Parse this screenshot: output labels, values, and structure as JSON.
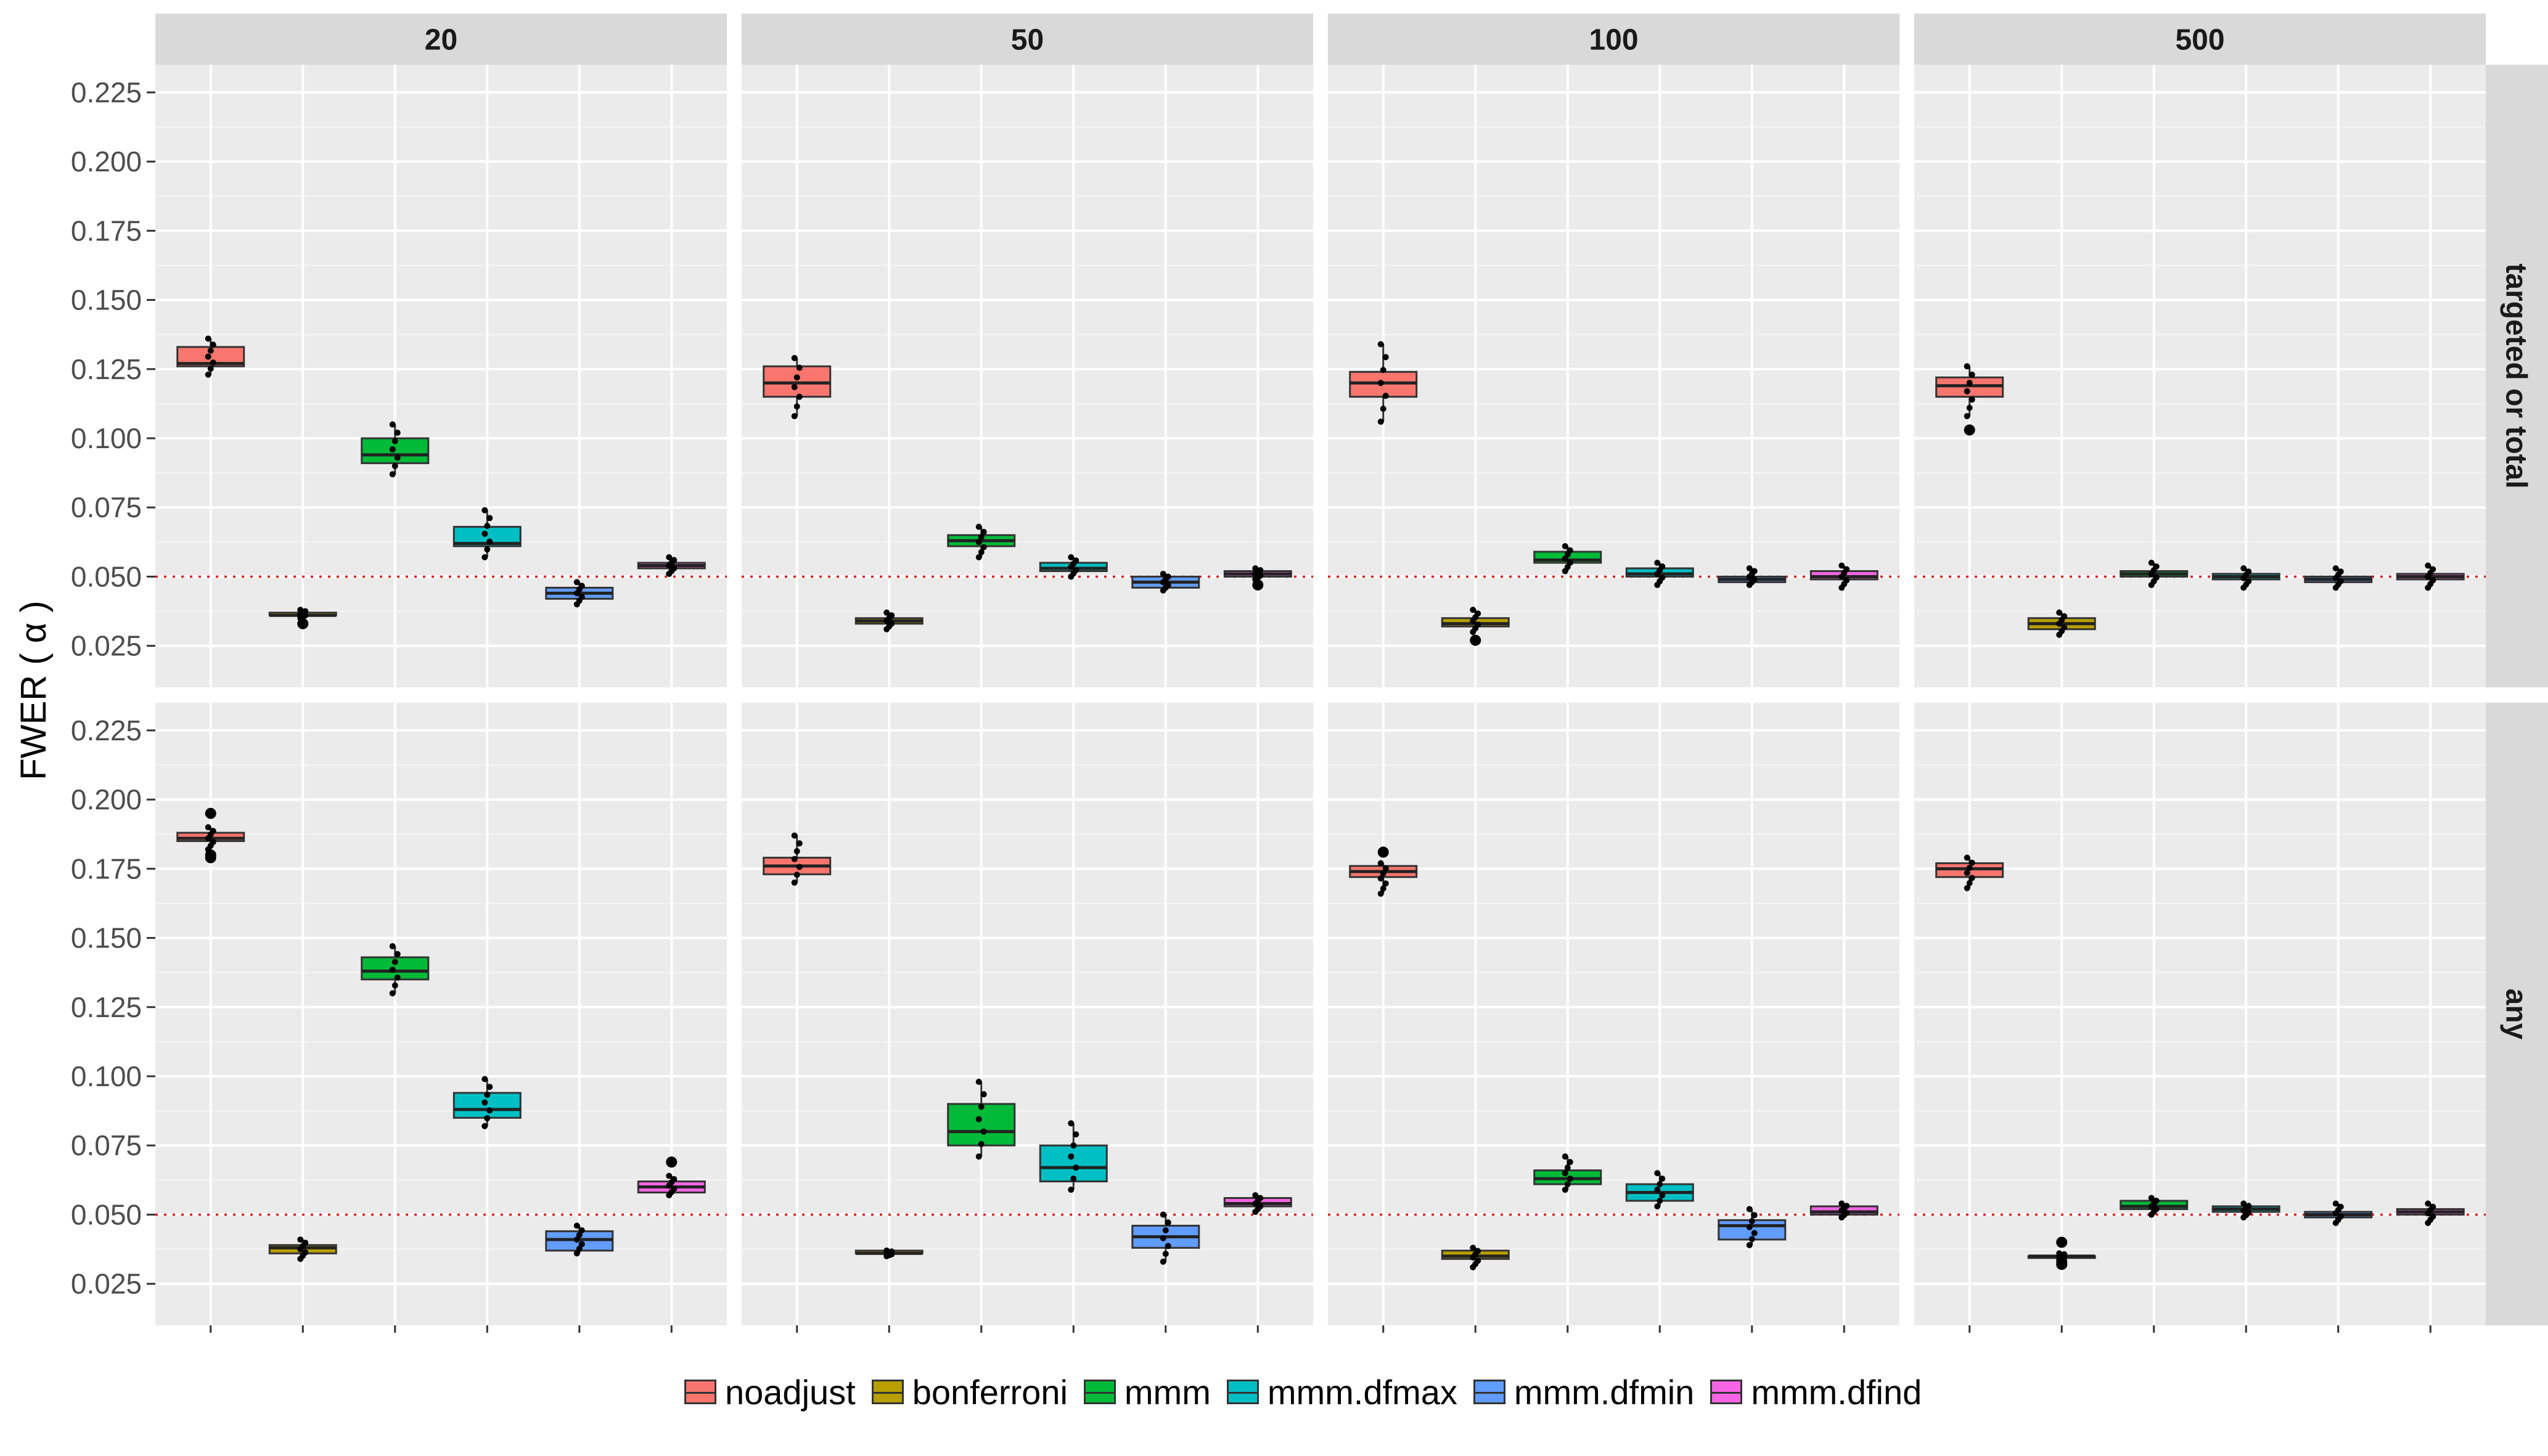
{
  "chart_data": {
    "type": "box",
    "ylabel": "FWER ( α )",
    "ylim": [
      0.01,
      0.235
    ],
    "y_ticks": [
      0.025,
      0.05,
      0.075,
      0.1,
      0.125,
      0.15,
      0.175,
      0.2,
      0.225
    ],
    "y_tick_labels": [
      "0.025",
      "0.050",
      "0.075",
      "0.100",
      "0.125",
      "0.150",
      "0.175",
      "0.200",
      "0.225"
    ],
    "reference_line": 0.05,
    "facet_columns": [
      "20",
      "50",
      "100",
      "500"
    ],
    "facet_rows": [
      "targeted or total",
      "any"
    ],
    "methods": [
      "noadjust",
      "bonferroni",
      "mmm",
      "mmm.dfmax",
      "mmm.dfmin",
      "mmm.dfind"
    ],
    "colors": {
      "noadjust": "#F8766D",
      "bonferroni": "#B79F00",
      "mmm": "#00BA38",
      "mmm.dfmax": "#00BFC4",
      "mmm.dfmin": "#619CFF",
      "mmm.dfind": "#F564E3",
      "reference_line": "#e41a1c",
      "panel": "#ebebeb",
      "strip": "#d9d9d9"
    },
    "panels": [
      {
        "row": 0,
        "col": 0,
        "boxes": [
          {
            "q1": 0.126,
            "med": 0.127,
            "q3": 0.133,
            "lo": 0.123,
            "hi": 0.136,
            "out": []
          },
          {
            "q1": 0.036,
            "med": 0.036,
            "q3": 0.037,
            "lo": 0.035,
            "hi": 0.038,
            "out": [
              0.033
            ]
          },
          {
            "q1": 0.091,
            "med": 0.094,
            "q3": 0.1,
            "lo": 0.087,
            "hi": 0.105,
            "out": []
          },
          {
            "q1": 0.061,
            "med": 0.062,
            "q3": 0.068,
            "lo": 0.057,
            "hi": 0.074,
            "out": []
          },
          {
            "q1": 0.042,
            "med": 0.044,
            "q3": 0.046,
            "lo": 0.04,
            "hi": 0.048,
            "out": []
          },
          {
            "q1": 0.053,
            "med": 0.054,
            "q3": 0.055,
            "lo": 0.051,
            "hi": 0.057,
            "out": []
          }
        ]
      },
      {
        "row": 0,
        "col": 1,
        "boxes": [
          {
            "q1": 0.115,
            "med": 0.12,
            "q3": 0.126,
            "lo": 0.108,
            "hi": 0.129,
            "out": []
          },
          {
            "q1": 0.033,
            "med": 0.034,
            "q3": 0.035,
            "lo": 0.031,
            "hi": 0.037,
            "out": []
          },
          {
            "q1": 0.061,
            "med": 0.063,
            "q3": 0.065,
            "lo": 0.057,
            "hi": 0.068,
            "out": []
          },
          {
            "q1": 0.052,
            "med": 0.053,
            "q3": 0.055,
            "lo": 0.05,
            "hi": 0.057,
            "out": []
          },
          {
            "q1": 0.046,
            "med": 0.048,
            "q3": 0.05,
            "lo": 0.045,
            "hi": 0.051,
            "out": []
          },
          {
            "q1": 0.05,
            "med": 0.051,
            "q3": 0.052,
            "lo": 0.049,
            "hi": 0.053,
            "out": [
              0.047
            ]
          }
        ]
      },
      {
        "row": 0,
        "col": 2,
        "boxes": [
          {
            "q1": 0.115,
            "med": 0.12,
            "q3": 0.124,
            "lo": 0.106,
            "hi": 0.134,
            "out": []
          },
          {
            "q1": 0.032,
            "med": 0.033,
            "q3": 0.035,
            "lo": 0.03,
            "hi": 0.038,
            "out": [
              0.027
            ]
          },
          {
            "q1": 0.055,
            "med": 0.056,
            "q3": 0.059,
            "lo": 0.052,
            "hi": 0.061,
            "out": []
          },
          {
            "q1": 0.05,
            "med": 0.051,
            "q3": 0.053,
            "lo": 0.047,
            "hi": 0.055,
            "out": []
          },
          {
            "q1": 0.048,
            "med": 0.049,
            "q3": 0.05,
            "lo": 0.047,
            "hi": 0.053,
            "out": []
          },
          {
            "q1": 0.049,
            "med": 0.05,
            "q3": 0.052,
            "lo": 0.046,
            "hi": 0.054,
            "out": []
          }
        ]
      },
      {
        "row": 0,
        "col": 3,
        "boxes": [
          {
            "q1": 0.115,
            "med": 0.119,
            "q3": 0.122,
            "lo": 0.108,
            "hi": 0.126,
            "out": [
              0.103
            ]
          },
          {
            "q1": 0.031,
            "med": 0.033,
            "q3": 0.035,
            "lo": 0.029,
            "hi": 0.037,
            "out": []
          },
          {
            "q1": 0.05,
            "med": 0.051,
            "q3": 0.052,
            "lo": 0.047,
            "hi": 0.055,
            "out": []
          },
          {
            "q1": 0.049,
            "med": 0.05,
            "q3": 0.051,
            "lo": 0.046,
            "hi": 0.053,
            "out": []
          },
          {
            "q1": 0.048,
            "med": 0.049,
            "q3": 0.05,
            "lo": 0.046,
            "hi": 0.053,
            "out": []
          },
          {
            "q1": 0.049,
            "med": 0.05,
            "q3": 0.051,
            "lo": 0.046,
            "hi": 0.054,
            "out": []
          }
        ]
      },
      {
        "row": 1,
        "col": 0,
        "boxes": [
          {
            "q1": 0.185,
            "med": 0.186,
            "q3": 0.188,
            "lo": 0.182,
            "hi": 0.19,
            "out": [
              0.195,
              0.18,
              0.179
            ]
          },
          {
            "q1": 0.036,
            "med": 0.038,
            "q3": 0.039,
            "lo": 0.034,
            "hi": 0.041,
            "out": []
          },
          {
            "q1": 0.135,
            "med": 0.138,
            "q3": 0.143,
            "lo": 0.13,
            "hi": 0.147,
            "out": []
          },
          {
            "q1": 0.085,
            "med": 0.088,
            "q3": 0.094,
            "lo": 0.082,
            "hi": 0.099,
            "out": []
          },
          {
            "q1": 0.037,
            "med": 0.041,
            "q3": 0.044,
            "lo": 0.036,
            "hi": 0.046,
            "out": []
          },
          {
            "q1": 0.058,
            "med": 0.06,
            "q3": 0.062,
            "lo": 0.057,
            "hi": 0.064,
            "out": [
              0.069
            ]
          }
        ]
      },
      {
        "row": 1,
        "col": 1,
        "boxes": [
          {
            "q1": 0.173,
            "med": 0.176,
            "q3": 0.179,
            "lo": 0.17,
            "hi": 0.187,
            "out": []
          },
          {
            "q1": 0.036,
            "med": 0.036,
            "q3": 0.037,
            "lo": 0.035,
            "hi": 0.037,
            "out": []
          },
          {
            "q1": 0.075,
            "med": 0.08,
            "q3": 0.09,
            "lo": 0.071,
            "hi": 0.098,
            "out": []
          },
          {
            "q1": 0.062,
            "med": 0.067,
            "q3": 0.075,
            "lo": 0.059,
            "hi": 0.083,
            "out": []
          },
          {
            "q1": 0.038,
            "med": 0.042,
            "q3": 0.046,
            "lo": 0.033,
            "hi": 0.05,
            "out": []
          },
          {
            "q1": 0.053,
            "med": 0.054,
            "q3": 0.056,
            "lo": 0.051,
            "hi": 0.057,
            "out": []
          }
        ]
      },
      {
        "row": 1,
        "col": 2,
        "boxes": [
          {
            "q1": 0.172,
            "med": 0.174,
            "q3": 0.176,
            "lo": 0.166,
            "hi": 0.177,
            "out": [
              0.181
            ]
          },
          {
            "q1": 0.034,
            "med": 0.035,
            "q3": 0.037,
            "lo": 0.031,
            "hi": 0.038,
            "out": []
          },
          {
            "q1": 0.061,
            "med": 0.063,
            "q3": 0.066,
            "lo": 0.059,
            "hi": 0.071,
            "out": []
          },
          {
            "q1": 0.055,
            "med": 0.058,
            "q3": 0.061,
            "lo": 0.053,
            "hi": 0.065,
            "out": []
          },
          {
            "q1": 0.041,
            "med": 0.046,
            "q3": 0.048,
            "lo": 0.039,
            "hi": 0.052,
            "out": []
          },
          {
            "q1": 0.05,
            "med": 0.051,
            "q3": 0.053,
            "lo": 0.049,
            "hi": 0.054,
            "out": []
          }
        ]
      },
      {
        "row": 1,
        "col": 3,
        "boxes": [
          {
            "q1": 0.172,
            "med": 0.175,
            "q3": 0.177,
            "lo": 0.168,
            "hi": 0.179,
            "out": []
          },
          {
            "q1": 0.035,
            "med": 0.035,
            "q3": 0.035,
            "lo": 0.034,
            "hi": 0.036,
            "out": [
              0.04,
              0.033,
              0.032
            ]
          },
          {
            "q1": 0.052,
            "med": 0.053,
            "q3": 0.055,
            "lo": 0.05,
            "hi": 0.056,
            "out": []
          },
          {
            "q1": 0.051,
            "med": 0.052,
            "q3": 0.053,
            "lo": 0.049,
            "hi": 0.054,
            "out": []
          },
          {
            "q1": 0.049,
            "med": 0.05,
            "q3": 0.051,
            "lo": 0.047,
            "hi": 0.054,
            "out": []
          },
          {
            "q1": 0.05,
            "med": 0.051,
            "q3": 0.052,
            "lo": 0.047,
            "hi": 0.054,
            "out": []
          }
        ]
      }
    ]
  }
}
